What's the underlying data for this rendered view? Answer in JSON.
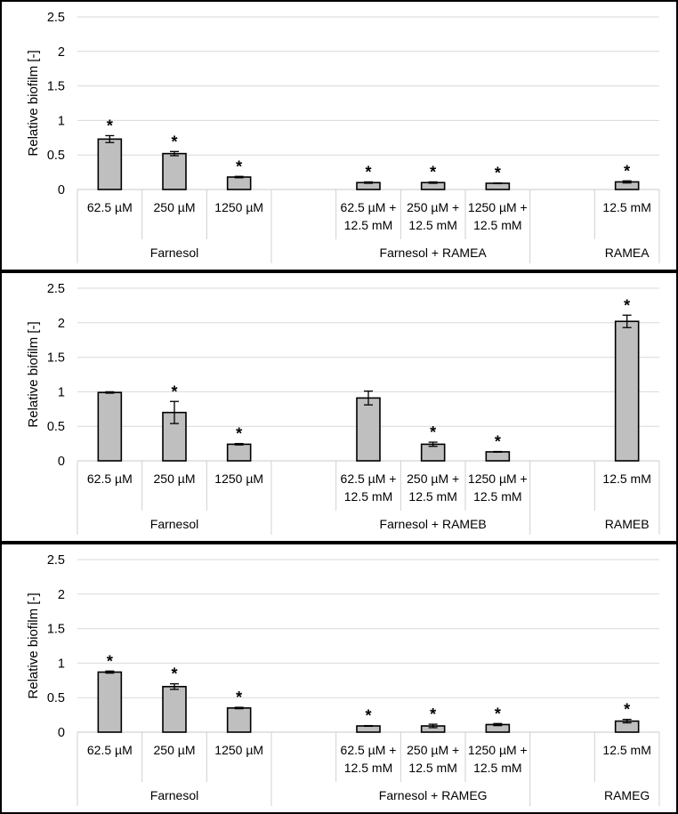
{
  "chart_data": [
    {
      "type": "bar",
      "ylabel": "Relative biofilm [-]",
      "ylim": [
        0,
        2.5
      ],
      "yticks": [
        "0",
        "0.5",
        "1",
        "1.5",
        "2",
        "2.5"
      ],
      "grid": true,
      "categories": [
        "62.5 µM",
        "250 µM",
        "1250 µM",
        "",
        "62.5 µM +\n12.5 mM",
        "250 µM +\n12.5 mM",
        "1250 µM +\n12.5 mM",
        "",
        "12.5 mM"
      ],
      "values": [
        0.73,
        0.52,
        0.18,
        null,
        0.1,
        0.1,
        0.09,
        null,
        0.11
      ],
      "errors": [
        0.05,
        0.03,
        0.01,
        null,
        0.01,
        0.01,
        0.005,
        null,
        0.015
      ],
      "annotations": [
        "*",
        "*",
        "*",
        "",
        "*",
        "*",
        "*",
        "",
        "*"
      ],
      "groups": [
        {
          "label": "Farnesol",
          "start": 0,
          "end": 3
        },
        {
          "label": "Farnesol + RAMEA",
          "start": 3,
          "end": 7
        },
        {
          "label": "RAMEA",
          "start": 7,
          "end": 9
        }
      ]
    },
    {
      "type": "bar",
      "ylabel": "Relative biofilm [-]",
      "ylim": [
        0,
        2.5
      ],
      "yticks": [
        "0",
        "0.5",
        "1",
        "1.5",
        "2",
        "2.5"
      ],
      "grid": true,
      "categories": [
        "62.5 µM",
        "250 µM",
        "1250 µM",
        "",
        "62.5 µM +\n12.5 mM",
        "250 µM +\n12.5 mM",
        "1250 µM +\n12.5 mM",
        "",
        "12.5 mM"
      ],
      "values": [
        0.99,
        0.7,
        0.24,
        null,
        0.91,
        0.24,
        0.13,
        null,
        2.02
      ],
      "errors": [
        0.01,
        0.16,
        0.01,
        null,
        0.1,
        0.03,
        0.005,
        null,
        0.09
      ],
      "annotations": [
        "",
        "*",
        "*",
        "",
        "",
        "*",
        "*",
        "",
        "*"
      ],
      "groups": [
        {
          "label": "Farnesol",
          "start": 0,
          "end": 3
        },
        {
          "label": "Farnesol + RAMEB",
          "start": 3,
          "end": 7
        },
        {
          "label": "RAMEB",
          "start": 7,
          "end": 9
        }
      ]
    },
    {
      "type": "bar",
      "ylabel": "Relative biofilm [-]",
      "ylim": [
        0,
        2.5
      ],
      "yticks": [
        "0",
        "0.5",
        "1",
        "1.5",
        "2",
        "2.5"
      ],
      "grid": true,
      "categories": [
        "62.5 µM",
        "250 µM",
        "1250 µM",
        "",
        "62.5 µM +\n12.5 mM",
        "250 µM +\n12.5 mM",
        "1250 µM +\n12.5 mM",
        "",
        "12.5 mM"
      ],
      "values": [
        0.87,
        0.66,
        0.35,
        null,
        0.09,
        0.09,
        0.11,
        null,
        0.16
      ],
      "errors": [
        0.015,
        0.04,
        0.01,
        null,
        0.005,
        0.025,
        0.015,
        null,
        0.025
      ],
      "annotations": [
        "*",
        "*",
        "*",
        "",
        "*",
        "*",
        "*",
        "",
        "*"
      ],
      "groups": [
        {
          "label": "Farnesol",
          "start": 0,
          "end": 3
        },
        {
          "label": "Farnesol + RAMEG",
          "start": 3,
          "end": 7
        },
        {
          "label": "RAMEG",
          "start": 7,
          "end": 9
        }
      ]
    }
  ]
}
